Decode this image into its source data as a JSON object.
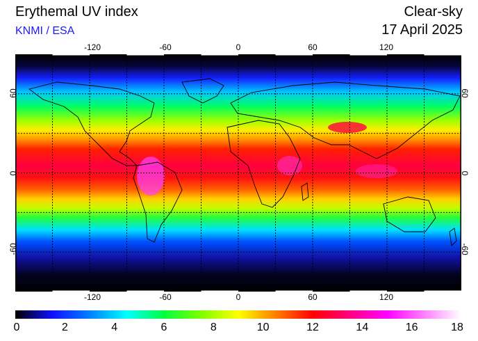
{
  "header": {
    "title": "Erythemal UV index",
    "source": "KNMI / ESA",
    "mode": "Clear-sky",
    "date": "17 April 2025"
  },
  "map": {
    "projection": "equirectangular",
    "lon_range": [
      -180,
      180
    ],
    "lat_range": [
      -90,
      90
    ],
    "grid": true,
    "lon_ticks": [
      "-120",
      "-60",
      "0",
      "60",
      "120"
    ],
    "lat_ticks": [
      "60",
      "0",
      "-60"
    ]
  },
  "colorbar": {
    "ticks": [
      "0",
      "2",
      "4",
      "6",
      "8",
      "10",
      "12",
      "14",
      "16",
      "18"
    ],
    "range": [
      0,
      18
    ],
    "stops": [
      "#000000",
      "#1010ff",
      "#0080ff",
      "#00ffff",
      "#00ff40",
      "#80ff00",
      "#ffff00",
      "#ff8000",
      "#ff0000",
      "#ff0080",
      "#ff00ff",
      "#ff80ff",
      "#ffffff"
    ]
  }
}
